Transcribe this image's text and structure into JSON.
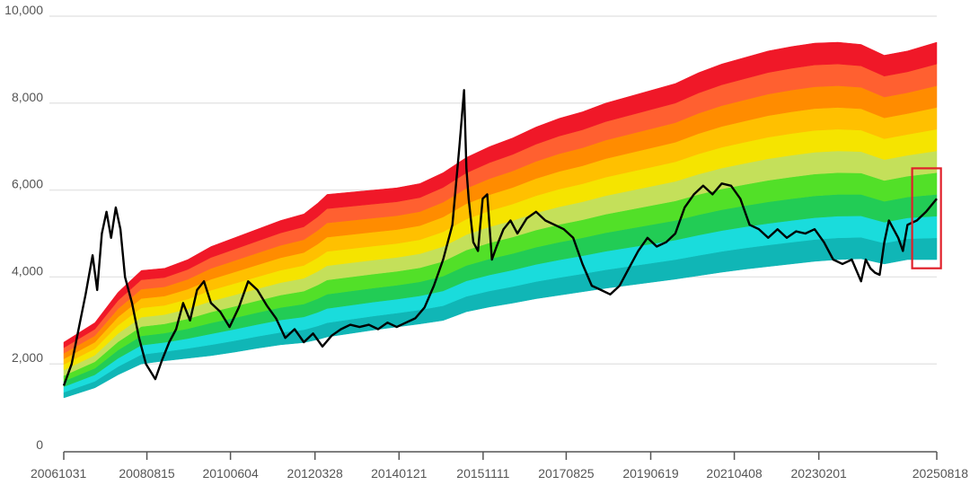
{
  "chart_data": {
    "type": "area",
    "title": "",
    "xlabel": "",
    "ylabel": "",
    "ylim": [
      0,
      10000
    ],
    "y_ticks": [
      "0",
      "2,000",
      "4,000",
      "6,000",
      "8,000",
      "10,000"
    ],
    "y_tick_values": [
      0,
      2000,
      4000,
      6000,
      8000,
      10000
    ],
    "x_ticks": [
      "20061031",
      "20080815",
      "20100604",
      "20120328",
      "20140121",
      "20151111",
      "20170825",
      "20190619",
      "20210408",
      "20230201",
      "20250818"
    ],
    "x_tick_years": [
      2006.83,
      2008.62,
      2010.42,
      2012.24,
      2014.05,
      2015.86,
      2017.65,
      2019.47,
      2021.27,
      2023.09,
      2025.63
    ],
    "x_range": [
      2006.83,
      2025.63
    ],
    "grid": "horizontal",
    "band_colors": [
      "#10B6B6",
      "#1ADCDC",
      "#22CC55",
      "#52E028",
      "#C4E05A",
      "#F5E400",
      "#FFC000",
      "#FF8C00",
      "#FF6030",
      "#F01828"
    ],
    "band_years": [
      2006.83,
      2007.5,
      2008.0,
      2008.5,
      2009.0,
      2009.5,
      2010.0,
      2010.5,
      2011.0,
      2011.5,
      2012.0,
      2012.3,
      2012.5,
      2013.0,
      2013.5,
      2014.0,
      2014.5,
      2015.0,
      2015.5,
      2016.0,
      2016.5,
      2017.0,
      2017.5,
      2018.0,
      2018.5,
      2019.0,
      2019.5,
      2020.0,
      2020.5,
      2021.0,
      2021.5,
      2022.0,
      2022.5,
      2023.0,
      2023.5,
      2024.0,
      2024.5,
      2025.0,
      2025.63
    ],
    "band_lower": [
      1220,
      1450,
      1750,
      2000,
      2070,
      2130,
      2190,
      2270,
      2360,
      2440,
      2490,
      2560,
      2620,
      2700,
      2780,
      2850,
      2920,
      3000,
      3200,
      3310,
      3400,
      3500,
      3580,
      3660,
      3740,
      3810,
      3880,
      3950,
      4030,
      4110,
      4180,
      4240,
      4300,
      4360,
      4400,
      4420,
      4300,
      4400,
      4400
    ],
    "band_upper": [
      2500,
      2950,
      3650,
      4150,
      4200,
      4400,
      4700,
      4900,
      5100,
      5300,
      5450,
      5700,
      5900,
      5950,
      6000,
      6050,
      6150,
      6400,
      6750,
      7000,
      7200,
      7450,
      7650,
      7800,
      8000,
      8150,
      8300,
      8450,
      8700,
      8900,
      9050,
      9200,
      9300,
      9380,
      9400,
      9350,
      9100,
      9200,
      9400
    ],
    "series": [
      {
        "x": [
          2006.83,
          2007.0,
          2007.15,
          2007.3,
          2007.45,
          2007.55,
          2007.65,
          2007.75,
          2007.85,
          2007.95,
          2008.05,
          2008.15,
          2008.3,
          2008.45,
          2008.6,
          2008.8,
          2008.95,
          2009.1,
          2009.25,
          2009.4,
          2009.55,
          2009.7,
          2009.85,
          2010.0,
          2010.2,
          2010.4,
          2010.6,
          2010.8,
          2011.0,
          2011.2,
          2011.4,
          2011.6,
          2011.8,
          2012.0,
          2012.2,
          2012.4,
          2012.6,
          2012.8,
          2013.0,
          2013.2,
          2013.4,
          2013.6,
          2013.8,
          2014.0,
          2014.2,
          2014.4,
          2014.6,
          2014.8,
          2015.0,
          2015.2,
          2015.35,
          2015.45,
          2015.5,
          2015.55,
          2015.65,
          2015.75,
          2015.85,
          2015.95,
          2016.05,
          2016.15,
          2016.3,
          2016.45,
          2016.6,
          2016.8,
          2017.0,
          2017.2,
          2017.4,
          2017.6,
          2017.8,
          2018.0,
          2018.2,
          2018.4,
          2018.6,
          2018.8,
          2019.0,
          2019.2,
          2019.4,
          2019.6,
          2019.8,
          2020.0,
          2020.2,
          2020.4,
          2020.6,
          2020.8,
          2021.0,
          2021.2,
          2021.4,
          2021.6,
          2021.8,
          2022.0,
          2022.2,
          2022.4,
          2022.6,
          2022.8,
          2023.0,
          2023.2,
          2023.4,
          2023.6,
          2023.8,
          2024.0,
          2024.1,
          2024.2,
          2024.3,
          2024.4,
          2024.5,
          2024.6,
          2024.7,
          2024.8,
          2024.9,
          2025.0,
          2025.2,
          2025.4,
          2025.63
        ],
        "values": [
          1500,
          2000,
          2800,
          3600,
          4500,
          3700,
          5000,
          5500,
          4900,
          5600,
          5100,
          4000,
          3400,
          2600,
          2000,
          1650,
          2100,
          2500,
          2800,
          3400,
          3000,
          3700,
          3900,
          3400,
          3200,
          2850,
          3300,
          3900,
          3700,
          3350,
          3050,
          2600,
          2800,
          2500,
          2700,
          2400,
          2650,
          2800,
          2900,
          2850,
          2900,
          2800,
          2950,
          2850,
          2950,
          3050,
          3300,
          3800,
          4400,
          5200,
          7000,
          8300,
          6500,
          5800,
          4800,
          4600,
          5800,
          5900,
          4400,
          4700,
          5100,
          5300,
          5000,
          5350,
          5500,
          5300,
          5200,
          5100,
          4900,
          4300,
          3800,
          3700,
          3600,
          3800,
          4200,
          4600,
          4900,
          4700,
          4800,
          5000,
          5600,
          5900,
          6100,
          5900,
          6150,
          6100,
          5800,
          5200,
          5100,
          4900,
          5100,
          4900,
          5050,
          5000,
          5100,
          4800,
          4400,
          4300,
          4400,
          3900,
          4400,
          4200,
          4100,
          4050,
          4800,
          5300,
          5100,
          4900,
          4600,
          5200,
          5300,
          5500,
          5800
        ]
      }
    ]
  },
  "highlight": {
    "x_from": 2025.1,
    "x_to": 2025.72,
    "y_from": 4200,
    "y_to": 6500,
    "color": "#E0202A"
  }
}
